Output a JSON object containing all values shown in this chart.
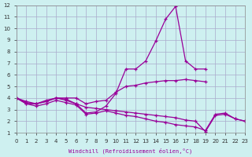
{
  "xlabel": "Windchill (Refroidissement éolien,°C)",
  "bg_color": "#cef0f0",
  "grid_color": "#aaaacc",
  "line_color": "#990099",
  "xlim": [
    0,
    23
  ],
  "ylim": [
    1,
    12
  ],
  "xticks": [
    0,
    1,
    2,
    3,
    4,
    5,
    6,
    7,
    8,
    9,
    10,
    11,
    12,
    13,
    14,
    15,
    16,
    17,
    18,
    19,
    20,
    21,
    22,
    23
  ],
  "yticks": [
    1,
    2,
    3,
    4,
    5,
    6,
    7,
    8,
    9,
    10,
    11,
    12
  ],
  "lines": [
    {
      "x": [
        0,
        1,
        2,
        3,
        4,
        5,
        6,
        7,
        8,
        9,
        10,
        11,
        12,
        13,
        14,
        15,
        16,
        17,
        18,
        19
      ],
      "y": [
        4.0,
        3.7,
        3.5,
        3.7,
        4.0,
        3.9,
        3.5,
        2.7,
        2.8,
        3.3,
        4.4,
        6.5,
        6.5,
        7.2,
        8.9,
        10.8,
        11.9,
        7.2,
        6.5,
        6.5
      ]
    },
    {
      "x": [
        0,
        1,
        2,
        3,
        4,
        5,
        6,
        7,
        8,
        9,
        10,
        11,
        12,
        13,
        14,
        15,
        16,
        17,
        18,
        19
      ],
      "y": [
        4.0,
        3.6,
        3.5,
        3.7,
        4.0,
        4.0,
        4.0,
        3.5,
        3.7,
        3.8,
        4.5,
        5.0,
        5.1,
        5.3,
        5.4,
        5.5,
        5.5,
        5.6,
        5.5,
        5.4
      ]
    },
    {
      "x": [
        0,
        1,
        2,
        3,
        4,
        5,
        6,
        7,
        8,
        9,
        10,
        11,
        12,
        13,
        14,
        15,
        16,
        17,
        18,
        19,
        20,
        21,
        22,
        23
      ],
      "y": [
        4.0,
        3.5,
        3.5,
        3.8,
        4.0,
        3.8,
        3.5,
        3.2,
        3.1,
        3.0,
        2.9,
        2.8,
        2.7,
        2.6,
        2.5,
        2.4,
        2.3,
        2.1,
        2.0,
        1.1,
        2.5,
        2.6,
        2.2,
        2.0
      ]
    },
    {
      "x": [
        0,
        1,
        2,
        3,
        4,
        5,
        6,
        7,
        8,
        9,
        10,
        11,
        12,
        13,
        14,
        15,
        16,
        17,
        18,
        19,
        20,
        21,
        22,
        23
      ],
      "y": [
        4.0,
        3.5,
        3.3,
        3.5,
        3.8,
        3.6,
        3.4,
        2.6,
        2.7,
        2.9,
        2.7,
        2.5,
        2.4,
        2.2,
        2.0,
        1.9,
        1.7,
        1.6,
        1.5,
        1.2,
        2.6,
        2.7,
        2.2,
        2.0
      ]
    }
  ]
}
